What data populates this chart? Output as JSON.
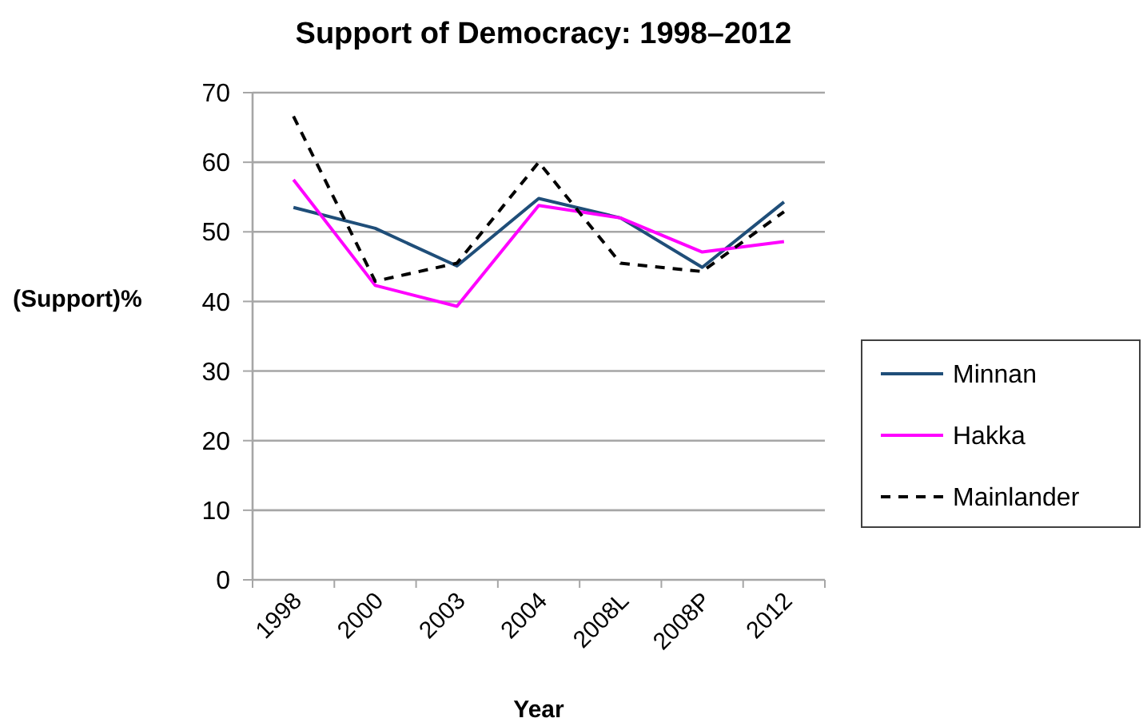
{
  "chart_data": {
    "type": "line",
    "title": "Support of Democracy: 1998–2012",
    "xlabel": "Year",
    "ylabel": "(Support)%",
    "categories": [
      "1998",
      "2000",
      "2003",
      "2004",
      "2008L",
      "2008P",
      "2012"
    ],
    "series": [
      {
        "name": "Minnan",
        "color": "#1f4e79",
        "values": [
          53.5,
          50.5,
          45.1,
          54.8,
          52.0,
          44.9,
          54.3
        ]
      },
      {
        "name": "Hakka",
        "color": "#ff00ff",
        "values": [
          57.5,
          42.3,
          39.3,
          53.8,
          52.0,
          47.1,
          48.6
        ]
      },
      {
        "name": "Mainlander",
        "color": "#000000",
        "values": [
          66.6,
          42.9,
          45.5,
          60.0,
          45.5,
          44.3,
          52.9
        ],
        "line_style": "dashed"
      }
    ],
    "ylim": [
      0,
      70
    ],
    "yticks": [
      0,
      10,
      20,
      30,
      40,
      50,
      60,
      70
    ],
    "grid": "y",
    "legend": "right",
    "marker": "none"
  }
}
